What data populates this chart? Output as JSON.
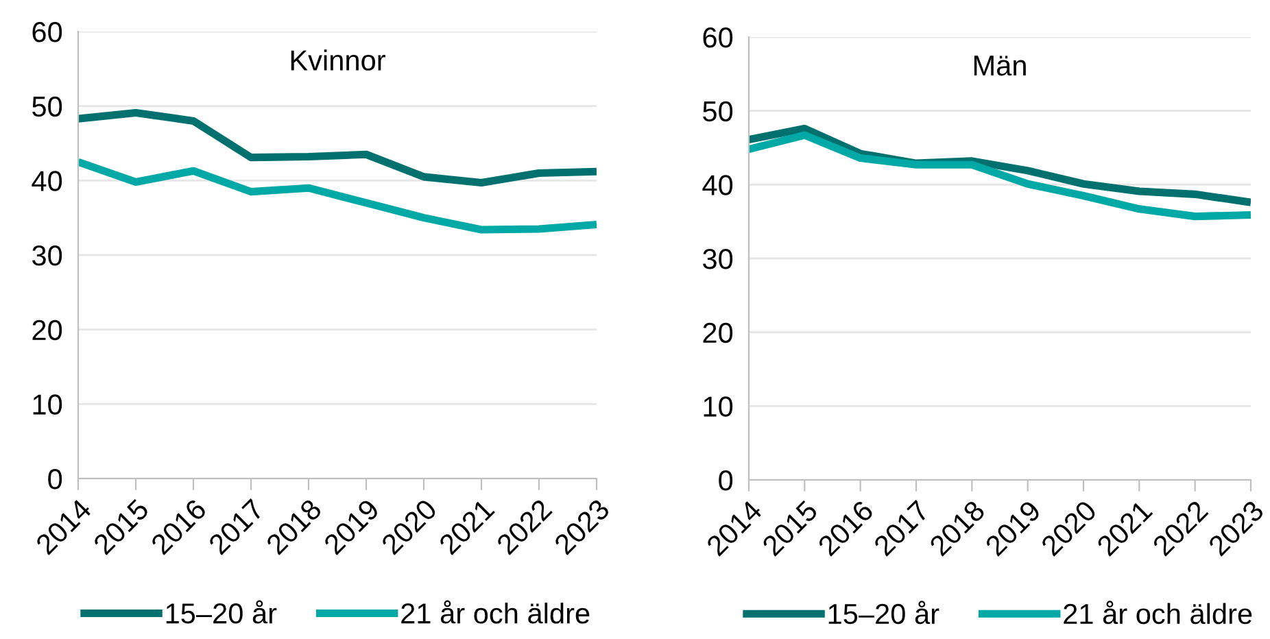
{
  "chart_data": [
    {
      "type": "line",
      "title": "Kvinnor",
      "x": [
        2014,
        2015,
        2016,
        2017,
        2018,
        2019,
        2020,
        2021,
        2022,
        2023
      ],
      "series": [
        {
          "name": "15–20 år",
          "color": "#00716f",
          "values": [
            48.3,
            49.1,
            48.0,
            43.1,
            43.2,
            43.5,
            40.5,
            39.7,
            41.0,
            41.2
          ]
        },
        {
          "name": "21 år och äldre",
          "color": "#00a9a5",
          "values": [
            42.5,
            39.8,
            41.3,
            38.5,
            39.0,
            37.0,
            35.0,
            33.4,
            33.5,
            34.1
          ]
        }
      ],
      "xlim": [
        2014,
        2023
      ],
      "xticks": [
        2014,
        2015,
        2016,
        2017,
        2018,
        2019,
        2020,
        2021,
        2022,
        2023
      ],
      "ylim": [
        0,
        60
      ],
      "yticks": [
        0,
        10,
        20,
        30,
        40,
        50,
        60
      ],
      "grid": "y",
      "legend": "bottom",
      "marker": "none",
      "line_style": "solid"
    },
    {
      "type": "line",
      "title": "Män",
      "x": [
        2014,
        2015,
        2016,
        2017,
        2018,
        2019,
        2020,
        2021,
        2022,
        2023
      ],
      "series": [
        {
          "name": "15–20 år",
          "color": "#00716f",
          "values": [
            46.1,
            47.6,
            44.2,
            42.9,
            43.2,
            41.9,
            40.1,
            39.1,
            38.7,
            37.6
          ]
        },
        {
          "name": "21 år och äldre",
          "color": "#00a9a5",
          "values": [
            44.8,
            46.7,
            43.6,
            42.7,
            42.7,
            40.1,
            38.5,
            36.7,
            35.7,
            35.9
          ]
        }
      ],
      "xlim": [
        2014,
        2023
      ],
      "xticks": [
        2014,
        2015,
        2016,
        2017,
        2018,
        2019,
        2020,
        2021,
        2022,
        2023
      ],
      "ylim": [
        0,
        60
      ],
      "yticks": [
        0,
        10,
        20,
        30,
        40,
        50,
        60
      ],
      "grid": "y",
      "legend": "bottom",
      "marker": "none",
      "line_style": "solid"
    }
  ]
}
